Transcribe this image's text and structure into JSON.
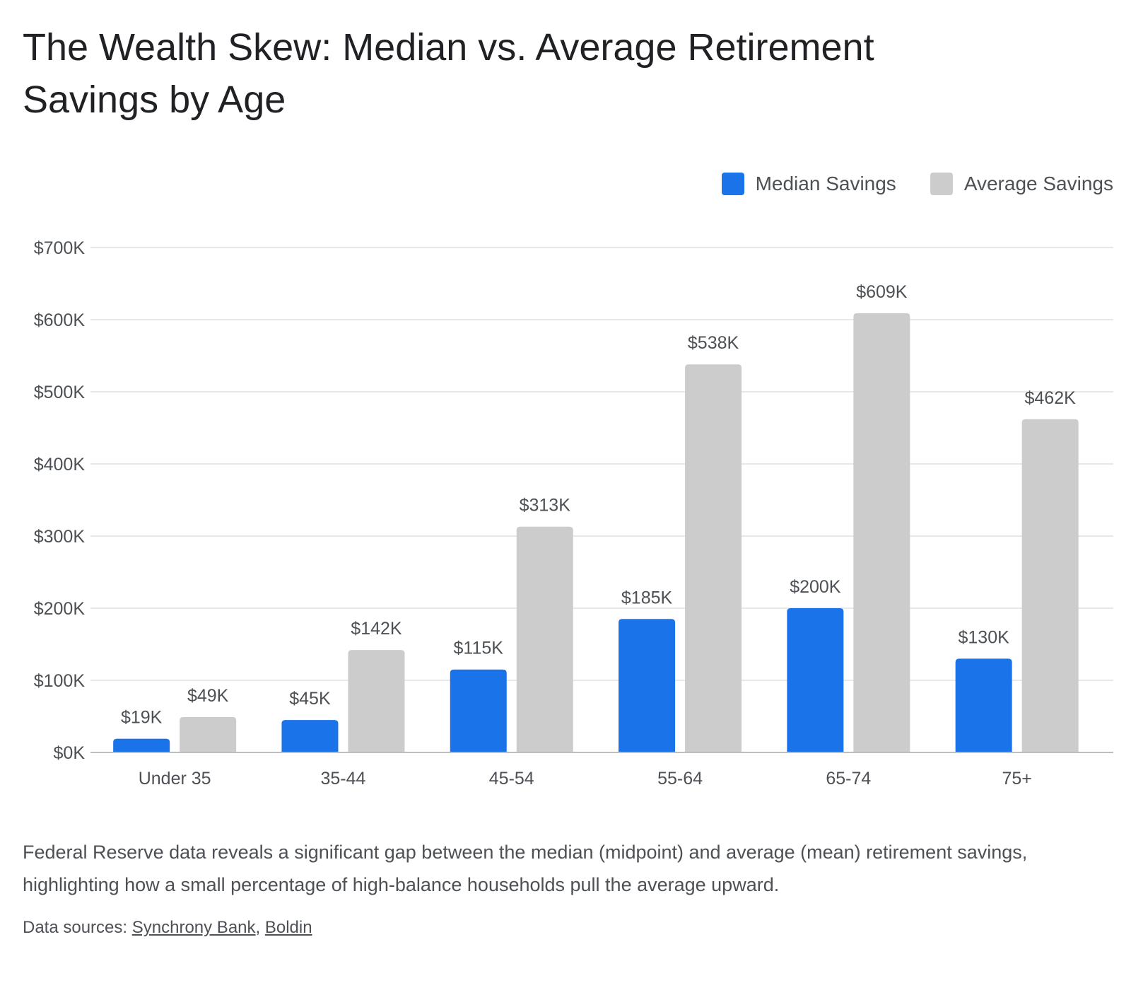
{
  "title": "The Wealth Skew: Median vs. Average Retirement Savings by Age",
  "description": "Federal Reserve data reveals a significant gap between the median (midpoint) and average (mean) retirement savings, highlighting how a small percentage of high-balance households pull the average upward.",
  "sources": {
    "prefix": "Data sources:",
    "separator": ",",
    "links": [
      "Synchrony Bank",
      "Boldin"
    ]
  },
  "colors": {
    "median": "#1a73e8",
    "average": "#cccccc",
    "grid": "#e0e0e0",
    "axis": "#bdbdbd",
    "text": "#4d5156",
    "title": "#202124"
  },
  "chart_data": {
    "type": "bar",
    "categories": [
      "Under 35",
      "35-44",
      "45-54",
      "55-64",
      "65-74",
      "75+"
    ],
    "series": [
      {
        "name": "Median Savings",
        "values": [
          19,
          45,
          115,
          185,
          200,
          130
        ],
        "labels": [
          "$19K",
          "$45K",
          "$115K",
          "$185K",
          "$200K",
          "$130K"
        ]
      },
      {
        "name": "Average Savings",
        "values": [
          49,
          142,
          313,
          538,
          609,
          462
        ],
        "labels": [
          "$49K",
          "$142K",
          "$313K",
          "$538K",
          "$609K",
          "$462K"
        ]
      }
    ],
    "unit": "thousands of dollars",
    "ylim": [
      0,
      700
    ],
    "yticks": [
      0,
      100,
      200,
      300,
      400,
      500,
      600,
      700
    ],
    "ytick_labels": [
      "$0K",
      "$100K",
      "$200K",
      "$300K",
      "$400K",
      "$500K",
      "$600K",
      "$700K"
    ],
    "grid": true,
    "legend_position": "top-right",
    "data_labels": true
  }
}
